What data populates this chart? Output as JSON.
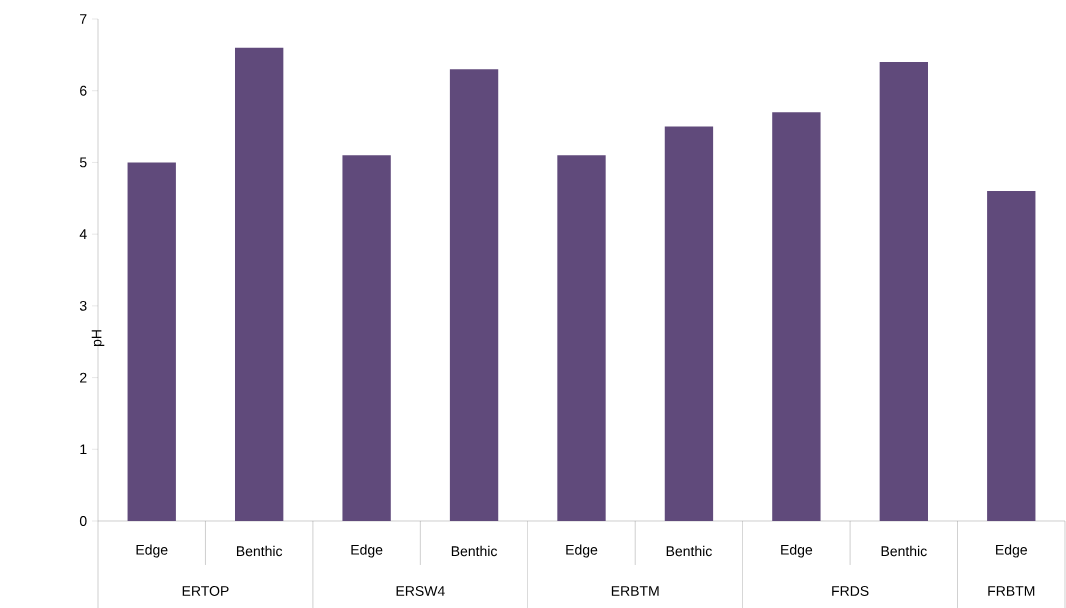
{
  "chart_data": {
    "type": "bar",
    "ylabel": "pH",
    "categories": [
      "Edge",
      "Benthic",
      "Edge",
      "Benthic",
      "Edge",
      "Benthic",
      "Edge",
      "Benthic",
      "Edge"
    ],
    "values": [
      5.0,
      6.6,
      5.1,
      6.3,
      5.1,
      5.5,
      5.7,
      6.4,
      4.6
    ],
    "color": "#604a7b",
    "ylim": [
      0,
      7
    ],
    "yticks": [
      0,
      1,
      2,
      3,
      4,
      5,
      6,
      7
    ],
    "annotations": [
      "ERTOP",
      "ERSW4",
      "ERBTM",
      "FRDS",
      "FRBTM"
    ]
  }
}
